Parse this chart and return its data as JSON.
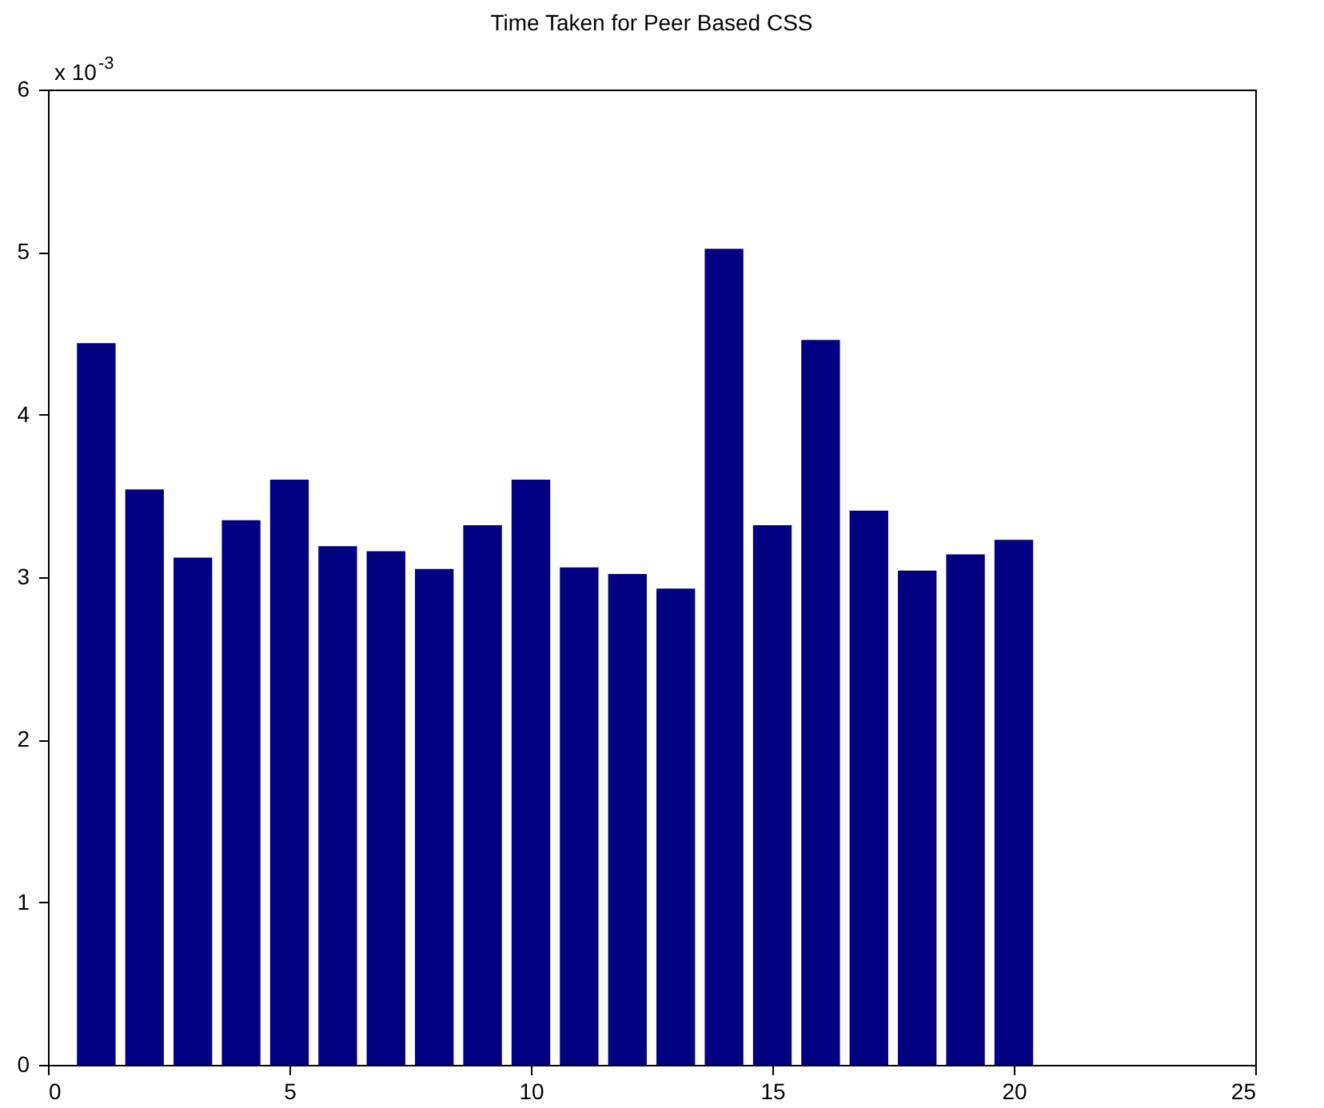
{
  "chart_data": {
    "type": "bar",
    "title": "Time Taken for Peer Based CSS",
    "x": [
      1,
      2,
      3,
      4,
      5,
      6,
      7,
      8,
      9,
      10,
      11,
      12,
      13,
      14,
      15,
      16,
      17,
      18,
      19,
      20
    ],
    "values": [
      4.44,
      3.54,
      3.12,
      3.35,
      3.6,
      3.19,
      3.16,
      3.05,
      3.32,
      3.6,
      3.06,
      3.02,
      2.93,
      5.02,
      3.32,
      4.46,
      3.41,
      3.04,
      3.14,
      3.23
    ],
    "color": "#000080",
    "xlim": [
      0,
      25
    ],
    "xticks": [
      0,
      5,
      10,
      15,
      20,
      25
    ],
    "ylim": [
      0,
      6
    ],
    "yticks": [
      0,
      1,
      2,
      3,
      4,
      5,
      6
    ],
    "annotations": [
      "x 10$^{-3}$"
    ],
    "grid": false
  }
}
